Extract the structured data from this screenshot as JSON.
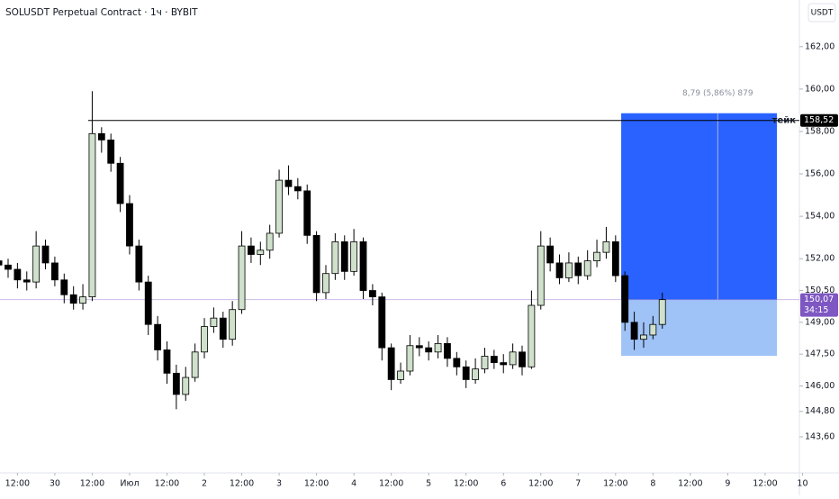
{
  "chart_data": {
    "type": "candlestick",
    "title": "SOLUSDT Perpetual Contract · 1ч · BYBIT",
    "y_unit": "USDT",
    "up_color": "#cfe0cb",
    "down_color": "#000000",
    "xlim": [
      -17.6,
      239
    ],
    "ylim": [
      141.9,
      164.2
    ],
    "xticks": [
      {
        "value": -12,
        "label": "12:00"
      },
      {
        "value": 0,
        "label": "30"
      },
      {
        "value": 12,
        "label": "12:00"
      },
      {
        "value": 24,
        "label": "Июл"
      },
      {
        "value": 36,
        "label": "12:00"
      },
      {
        "value": 48,
        "label": "2"
      },
      {
        "value": 60,
        "label": "12:00"
      },
      {
        "value": 72,
        "label": "3"
      },
      {
        "value": 84,
        "label": "12:00"
      },
      {
        "value": 96,
        "label": "4"
      },
      {
        "value": 108,
        "label": "12:00"
      },
      {
        "value": 120,
        "label": "5"
      },
      {
        "value": 132,
        "label": "12:00"
      },
      {
        "value": 144,
        "label": "6"
      },
      {
        "value": 156,
        "label": "12:00"
      },
      {
        "value": 168,
        "label": "7"
      },
      {
        "value": 180,
        "label": "12:00"
      },
      {
        "value": 192,
        "label": "8"
      },
      {
        "value": 204,
        "label": "12:00"
      },
      {
        "value": 216,
        "label": "9"
      },
      {
        "value": 228,
        "label": "12:00"
      },
      {
        "value": 240,
        "label": "10"
      }
    ],
    "yticks": [
      {
        "value": 162,
        "label": "162,00"
      },
      {
        "value": 160,
        "label": "160,00"
      },
      {
        "value": 158,
        "label": "158,00"
      },
      {
        "value": 156,
        "label": "156,00"
      },
      {
        "value": 154,
        "label": "154,00"
      },
      {
        "value": 152,
        "label": "152,00"
      },
      {
        "value": 150.5,
        "label": "150,50"
      },
      {
        "value": 149,
        "label": "149,00"
      },
      {
        "value": 147.5,
        "label": "147,50"
      },
      {
        "value": 146,
        "label": "146,00"
      },
      {
        "value": 144.8,
        "label": "144,80"
      },
      {
        "value": 143.6,
        "label": "143,60"
      }
    ],
    "x": [
      -18,
      -15,
      -12,
      -9,
      -6,
      -3,
      0,
      3,
      6,
      9,
      12,
      15,
      18,
      21,
      24,
      27,
      30,
      33,
      36,
      39,
      42,
      45,
      48,
      51,
      54,
      57,
      60,
      63,
      66,
      69,
      72,
      75,
      78,
      81,
      84,
      87,
      90,
      93,
      96,
      99,
      102,
      105,
      108,
      111,
      114,
      117,
      120,
      123,
      126,
      129,
      132,
      135,
      138,
      141,
      144,
      147,
      150,
      153,
      156,
      159,
      162,
      165,
      168,
      171,
      174,
      177,
      180,
      183,
      186,
      189,
      192,
      195
    ],
    "open": [
      151.9,
      151.7,
      151.5,
      151.0,
      150.9,
      152.6,
      151.8,
      151.0,
      150.3,
      149.9,
      150.2,
      157.9,
      157.6,
      156.5,
      154.6,
      152.6,
      150.9,
      148.9,
      147.7,
      146.6,
      145.6,
      146.4,
      147.6,
      148.8,
      149.2,
      148.2,
      149.6,
      152.6,
      152.2,
      152.4,
      153.2,
      155.7,
      155.4,
      155.2,
      153.1,
      150.4,
      151.3,
      152.8,
      151.4,
      152.8,
      150.5,
      150.2,
      147.8,
      146.3,
      146.7,
      147.9,
      147.8,
      147.6,
      148.0,
      147.3,
      146.9,
      146.3,
      146.8,
      147.4,
      147.1,
      147.0,
      147.6,
      146.9,
      149.8,
      152.6,
      151.8,
      151.1,
      151.8,
      151.2,
      151.9,
      152.3,
      152.8,
      151.2,
      149.0,
      148.2,
      148.4,
      148.9
    ],
    "high": [
      152.2,
      152.0,
      151.8,
      151.4,
      153.3,
      152.9,
      152.1,
      151.3,
      150.7,
      150.8,
      159.9,
      158.2,
      157.9,
      156.8,
      155.0,
      152.9,
      151.2,
      149.3,
      148.1,
      147.0,
      146.9,
      148.0,
      149.2,
      149.7,
      149.5,
      150.0,
      153.3,
      153.0,
      152.8,
      153.6,
      156.2,
      156.4,
      155.8,
      155.5,
      153.3,
      151.7,
      153.2,
      153.1,
      153.4,
      153.0,
      150.8,
      150.4,
      148.0,
      147.1,
      148.4,
      148.3,
      148.1,
      148.4,
      148.3,
      147.6,
      147.2,
      147.3,
      147.8,
      147.7,
      147.5,
      148.0,
      147.9,
      150.5,
      153.3,
      153.0,
      152.2,
      152.3,
      152.1,
      152.4,
      152.9,
      153.5,
      153.1,
      151.4,
      149.5,
      149.0,
      149.3,
      150.4
    ],
    "low": [
      151.3,
      151.1,
      150.6,
      150.5,
      150.6,
      151.5,
      150.7,
      149.9,
      149.6,
      149.6,
      150.0,
      157.0,
      156.1,
      154.2,
      152.2,
      150.5,
      148.4,
      147.2,
      146.1,
      144.9,
      145.3,
      146.2,
      147.3,
      148.5,
      147.8,
      147.9,
      149.4,
      151.8,
      151.7,
      152.0,
      153.0,
      155.0,
      154.8,
      152.7,
      150.0,
      150.1,
      151.0,
      151.0,
      151.2,
      150.1,
      149.8,
      147.2,
      145.8,
      146.1,
      146.5,
      147.4,
      147.2,
      147.3,
      146.9,
      146.5,
      145.9,
      146.1,
      146.6,
      146.8,
      146.6,
      146.8,
      146.5,
      146.8,
      149.6,
      151.4,
      150.8,
      150.9,
      150.8,
      151.0,
      151.6,
      152.0,
      150.9,
      148.6,
      147.7,
      147.8,
      148.2,
      148.7
    ],
    "close": [
      151.7,
      151.5,
      151.0,
      150.9,
      152.6,
      151.8,
      151.0,
      150.3,
      149.9,
      150.2,
      157.9,
      157.6,
      156.5,
      154.6,
      152.6,
      150.9,
      148.9,
      147.7,
      146.6,
      145.6,
      146.4,
      147.6,
      148.8,
      149.2,
      148.2,
      149.6,
      152.6,
      152.2,
      152.4,
      153.2,
      155.7,
      155.4,
      155.2,
      153.1,
      150.4,
      151.3,
      152.8,
      151.4,
      152.8,
      150.5,
      150.2,
      147.8,
      146.3,
      146.7,
      147.9,
      147.8,
      147.6,
      148.0,
      147.3,
      146.9,
      146.3,
      146.8,
      147.4,
      147.1,
      147.0,
      147.6,
      146.9,
      149.8,
      152.6,
      151.8,
      151.1,
      151.8,
      151.2,
      151.9,
      152.3,
      152.8,
      151.2,
      149.0,
      148.2,
      148.4,
      148.9,
      150.07
    ],
    "levels": [
      {
        "value": 158.52,
        "label": "158,52",
        "text": "тейк",
        "x_start": 10.7,
        "color": "#000000"
      }
    ],
    "last_price": {
      "value": 150.07,
      "label": "150,07",
      "countdown": "34:15",
      "color": "#7e57c2"
    },
    "position": {
      "entry": 150.07,
      "target": 158.86,
      "stop": 147.42,
      "x_start": 181.8,
      "x_end": 231.8,
      "x_mid": 212.8,
      "label": "8,79 (5,86%) 879",
      "profit_color": "#2962ff",
      "loss_color": "#9fc2f7"
    }
  }
}
